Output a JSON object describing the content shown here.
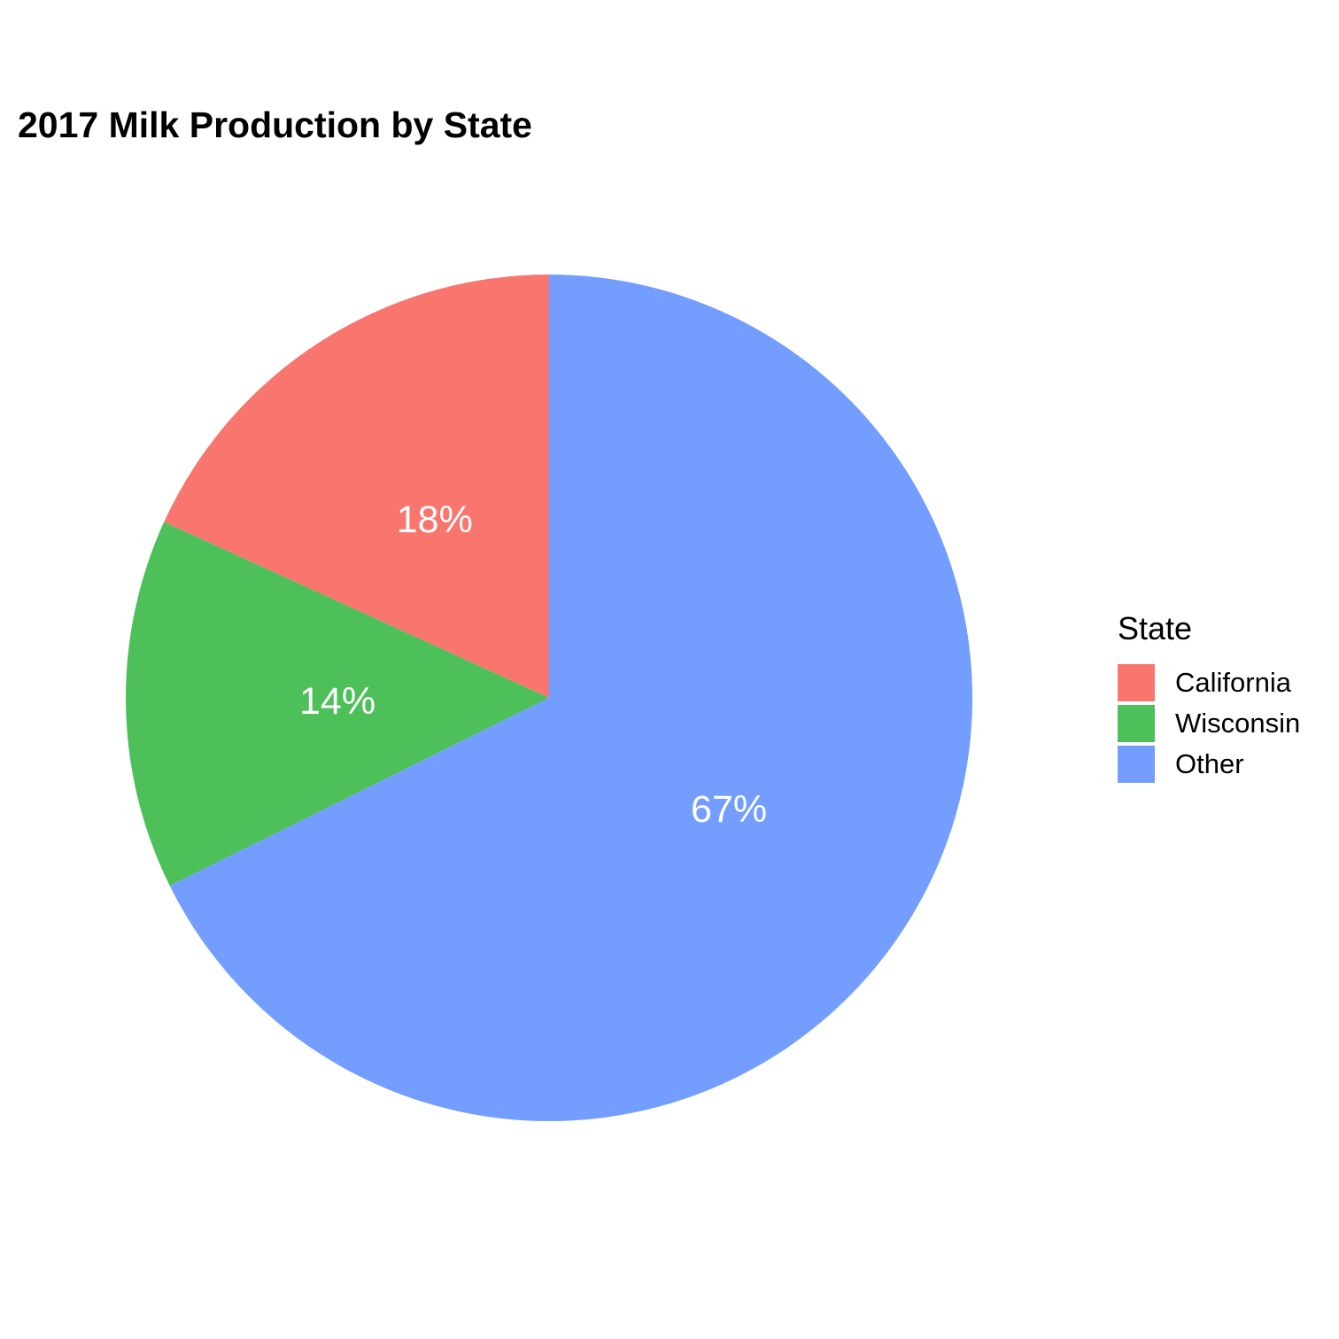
{
  "chart_data": {
    "type": "pie",
    "title": "2017 Milk Production by State",
    "legend_title": "State",
    "legend_position": "right",
    "slices": [
      {
        "name": "California",
        "value": 18,
        "label": "18%",
        "color": "#F8766D"
      },
      {
        "name": "Wisconsin",
        "value": 14,
        "label": "14%",
        "color": "#4DC05A"
      },
      {
        "name": "Other",
        "value": 67,
        "label": "67%",
        "color": "#739EFF"
      }
    ]
  }
}
